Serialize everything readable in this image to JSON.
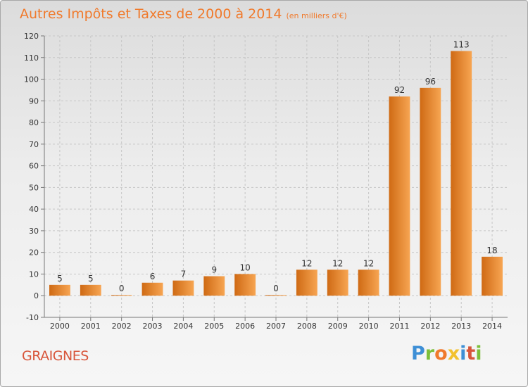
{
  "title": "Autres Impôts et Taxes de 2000 à 2014",
  "subtitle": "(en milliers d'€)",
  "place_name": "GRAIGNES",
  "logo": {
    "letters": [
      "P",
      "r",
      "o",
      "x",
      "i",
      "t",
      "i"
    ],
    "colors": [
      "#3d8fd6",
      "#7cbf3a",
      "#f07a2c",
      "#f2c12e",
      "#3d8fd6",
      "#d8553a",
      "#7cbf3a"
    ]
  },
  "colors": {
    "bar_top": "#f7a552",
    "bar_bottom": "#cf6a14",
    "title": "#f07a2c",
    "place": "#d8553a"
  },
  "chart_data": {
    "type": "bar",
    "title": "Autres Impôts et Taxes de 2000 à 2014",
    "subtitle": "(en milliers d'€)",
    "categories": [
      "2000",
      "2001",
      "2002",
      "2003",
      "2004",
      "2005",
      "2006",
      "2007",
      "2008",
      "2009",
      "2010",
      "2011",
      "2012",
      "2013",
      "2014"
    ],
    "values": [
      5,
      5,
      0,
      6,
      7,
      9,
      10,
      0,
      12,
      12,
      12,
      92,
      96,
      113,
      18
    ],
    "data_labels": [
      "5",
      "5",
      "0",
      "6",
      "7",
      "9",
      "10",
      "0",
      "12",
      "12",
      "12",
      "92",
      "96",
      "113",
      "18"
    ],
    "ylim": [
      -10,
      120
    ],
    "yticks": [
      -10,
      0,
      10,
      20,
      30,
      40,
      50,
      60,
      70,
      80,
      90,
      100,
      110,
      120
    ],
    "grid": true
  }
}
